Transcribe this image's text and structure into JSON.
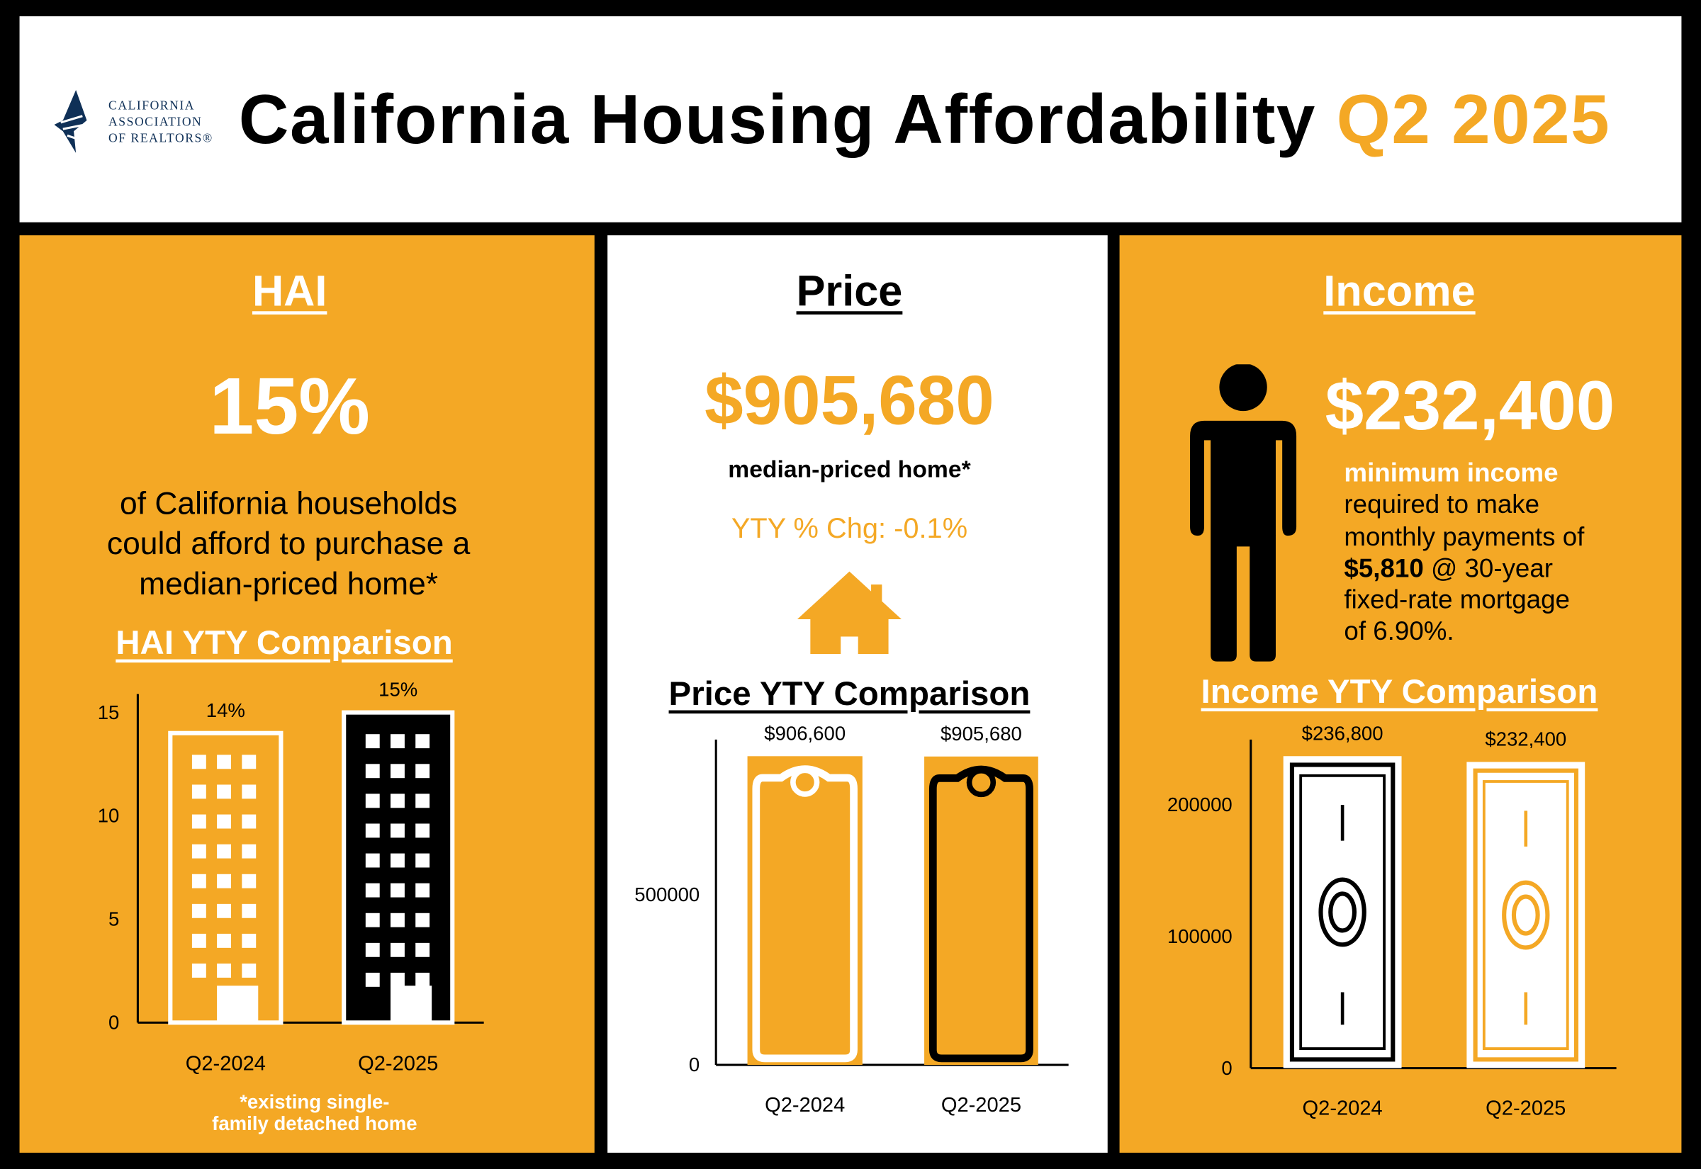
{
  "header": {
    "logo_text": [
      "CALIFORNIA",
      "ASSOCIATION",
      "OF REALTORS®"
    ],
    "title": "California Housing Affordability",
    "period": "Q2 2025"
  },
  "colors": {
    "accent": "#F4A825",
    "logo_navy": "#0F3057",
    "text": "#000000",
    "white": "#FFFFFF"
  },
  "hai": {
    "heading": "HAI",
    "value": "15%",
    "description": [
      "of California households",
      "could afford to purchase a",
      "median-priced home*"
    ],
    "comparison_title": "HAI YTY Comparison",
    "footnote": [
      "*existing single-",
      "family detached home"
    ]
  },
  "price": {
    "heading": "Price",
    "value": "$905,680",
    "caption": "median-priced home*",
    "yty_change": "YTY % Chg: -0.1%",
    "icon": "house-icon",
    "comparison_title": "Price YTY Comparison"
  },
  "income": {
    "heading": "Income",
    "value": "$232,400",
    "icon": "person-icon",
    "description_lead": "minimum income",
    "description": [
      "required to make",
      "monthly payments of"
    ],
    "payment": "$5,810",
    "payment_rest": " @ 30-year",
    "description_tail": [
      "fixed-rate mortgage",
      "of 6.90%."
    ],
    "comparison_title": "Income YTY Comparison"
  },
  "chart_data": [
    {
      "type": "bar",
      "categories": [
        "Q2-2024",
        "Q2-2025"
      ],
      "values": [
        14,
        15
      ],
      "data_labels": [
        "14%",
        "15%"
      ],
      "yticks": [
        0,
        5,
        10,
        15
      ],
      "ylim": [
        0,
        15
      ],
      "mark_icon": "building-icon"
    },
    {
      "type": "bar",
      "categories": [
        "Q2-2024",
        "Q2-2025"
      ],
      "values": [
        906600,
        905680
      ],
      "data_labels": [
        "$906,600",
        "$905,680"
      ],
      "yticks": [
        0,
        500000
      ],
      "ylim": [
        0,
        906600
      ],
      "mark_icon": "price-tag-icon"
    },
    {
      "type": "bar",
      "categories": [
        "Q2-2024",
        "Q2-2025"
      ],
      "values": [
        236800,
        232400
      ],
      "data_labels": [
        "$236,800",
        "$232,400"
      ],
      "yticks": [
        0,
        100000,
        200000
      ],
      "ylim": [
        0,
        236800
      ],
      "mark_icon": "dollar-bill-icon"
    }
  ]
}
